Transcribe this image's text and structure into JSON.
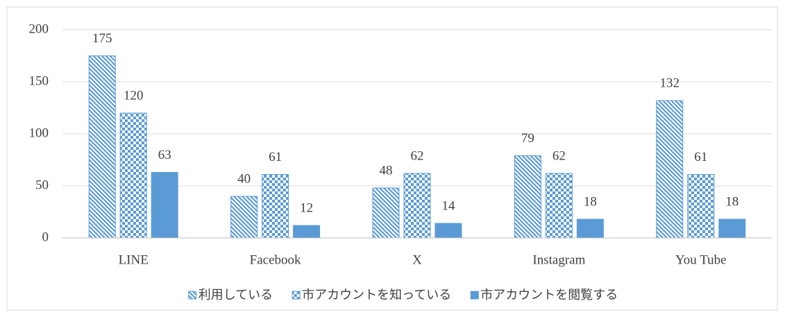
{
  "chart_data": {
    "type": "bar",
    "categories": [
      "LINE",
      "Facebook",
      "X",
      "Instagram",
      "You Tube"
    ],
    "series": [
      {
        "name": "利用している",
        "color": "#5b9bd5",
        "pattern": "diagonal",
        "values": [
          175,
          40,
          48,
          79,
          132
        ]
      },
      {
        "name": "市アカウントを知っている",
        "color": "#5b9bd5",
        "pattern": "checker",
        "values": [
          120,
          61,
          62,
          62,
          61
        ]
      },
      {
        "name": "市アカウントを閲覧する",
        "color": "#5b9bd5",
        "pattern": "solid",
        "values": [
          63,
          12,
          14,
          18,
          18
        ]
      }
    ],
    "ylim": [
      0,
      200
    ],
    "yticks": [
      0,
      50,
      100,
      150,
      200
    ],
    "grid": true,
    "legend": "bottom"
  }
}
